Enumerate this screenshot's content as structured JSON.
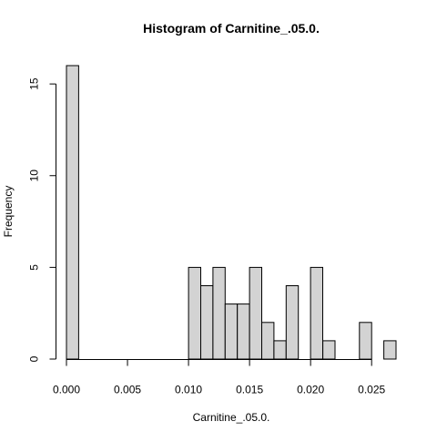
{
  "chart_data": {
    "type": "bar",
    "subtype": "histogram",
    "title": "Histogram of Carnitine_.05.0.",
    "xlabel": "Carnitine_.05.0.",
    "ylabel": "Frequency",
    "bin_width": 0.001,
    "bins": [
      {
        "start": 0.0,
        "end": 0.001,
        "count": 16
      },
      {
        "start": 0.001,
        "end": 0.002,
        "count": 0
      },
      {
        "start": 0.002,
        "end": 0.003,
        "count": 0
      },
      {
        "start": 0.003,
        "end": 0.004,
        "count": 0
      },
      {
        "start": 0.004,
        "end": 0.005,
        "count": 0
      },
      {
        "start": 0.005,
        "end": 0.006,
        "count": 0
      },
      {
        "start": 0.006,
        "end": 0.007,
        "count": 0
      },
      {
        "start": 0.007,
        "end": 0.008,
        "count": 0
      },
      {
        "start": 0.008,
        "end": 0.009,
        "count": 0
      },
      {
        "start": 0.009,
        "end": 0.01,
        "count": 0
      },
      {
        "start": 0.01,
        "end": 0.011,
        "count": 5
      },
      {
        "start": 0.011,
        "end": 0.012,
        "count": 4
      },
      {
        "start": 0.012,
        "end": 0.013,
        "count": 5
      },
      {
        "start": 0.013,
        "end": 0.014,
        "count": 3
      },
      {
        "start": 0.014,
        "end": 0.015,
        "count": 3
      },
      {
        "start": 0.015,
        "end": 0.016,
        "count": 5
      },
      {
        "start": 0.016,
        "end": 0.017,
        "count": 2
      },
      {
        "start": 0.017,
        "end": 0.018,
        "count": 1
      },
      {
        "start": 0.018,
        "end": 0.019,
        "count": 4
      },
      {
        "start": 0.019,
        "end": 0.02,
        "count": 0
      },
      {
        "start": 0.02,
        "end": 0.021,
        "count": 5
      },
      {
        "start": 0.021,
        "end": 0.022,
        "count": 1
      },
      {
        "start": 0.022,
        "end": 0.023,
        "count": 0
      },
      {
        "start": 0.023,
        "end": 0.024,
        "count": 0
      },
      {
        "start": 0.024,
        "end": 0.025,
        "count": 2
      },
      {
        "start": 0.025,
        "end": 0.026,
        "count": 0
      },
      {
        "start": 0.026,
        "end": 0.027,
        "count": 1
      }
    ],
    "xlim": [
      0,
      0.027
    ],
    "ylim": [
      0,
      16
    ],
    "x_ticks": [
      0.0,
      0.005,
      0.01,
      0.015,
      0.02,
      0.025
    ],
    "x_tick_labels": [
      "0.000",
      "0.005",
      "0.010",
      "0.015",
      "0.020",
      "0.025"
    ],
    "y_ticks": [
      0,
      5,
      10,
      15
    ],
    "y_tick_labels": [
      "0",
      "5",
      "10",
      "15"
    ],
    "bar_fill": "#d3d3d3",
    "bar_stroke": "#000000",
    "grid": false,
    "legend": "none"
  }
}
